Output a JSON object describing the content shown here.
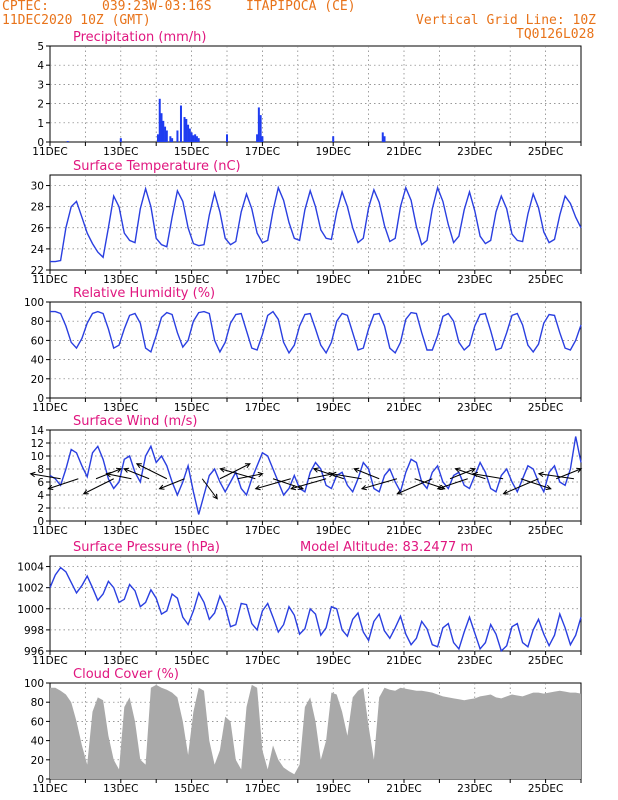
{
  "header": {
    "source": "CPTEC:",
    "coords": "039:23W-03:16S",
    "location": "ITAPIPOCA (CE)",
    "datetime": "11DEC2020 10Z (GMT)",
    "grid_note": "Vertical Grid Line: 10Z",
    "code": "TQ0126L028"
  },
  "x_axis": {
    "start_day": 11,
    "end_day": 26,
    "tick_labels": [
      "11DEC",
      "13DEC",
      "15DEC",
      "17DEC",
      "19DEC",
      "21DEC",
      "23DEC",
      "25DEC"
    ],
    "tick_days": [
      11,
      13,
      15,
      17,
      19,
      21,
      23,
      25
    ]
  },
  "colors": {
    "line": "#2a3fe0",
    "bar": "#1f3cf0",
    "cloud": "#a9a9a9",
    "title": "#e0167f",
    "header": "#e8731a"
  },
  "chart_data": [
    {
      "type": "bar",
      "title": "Precipitation (mm/h)",
      "ylim": [
        0,
        5
      ],
      "yticks": [
        0,
        1,
        2,
        3,
        4,
        5
      ],
      "x": [
        11.5,
        13.0,
        14.05,
        14.1,
        14.15,
        14.2,
        14.25,
        14.3,
        14.4,
        14.45,
        14.6,
        14.7,
        14.8,
        14.85,
        14.9,
        14.95,
        15.0,
        15.05,
        15.1,
        15.15,
        15.2,
        16.0,
        16.85,
        16.9,
        16.95,
        17.0,
        19.0,
        20.4,
        20.45
      ],
      "values": [
        0.05,
        0.2,
        0.4,
        2.25,
        1.5,
        1.1,
        0.8,
        0.6,
        0.3,
        0.2,
        0.6,
        1.9,
        1.3,
        1.2,
        0.9,
        0.7,
        0.5,
        0.35,
        0.4,
        0.3,
        0.2,
        0.4,
        0.4,
        1.8,
        1.4,
        0.3,
        0.3,
        0.5,
        0.3
      ]
    },
    {
      "type": "line",
      "title": "Surface Temperature (nC)",
      "ylim": [
        22,
        31
      ],
      "yticks": [
        22,
        24,
        26,
        28,
        30
      ],
      "x": [
        11.0,
        11.15,
        11.3,
        11.45,
        11.6,
        11.75,
        11.9,
        12.05,
        12.2,
        12.35,
        12.5,
        12.65,
        12.8,
        12.95,
        13.1,
        13.25,
        13.4,
        13.55,
        13.7,
        13.85,
        14.0,
        14.15,
        14.3,
        14.45,
        14.6,
        14.75,
        14.9,
        15.05,
        15.2,
        15.35,
        15.5,
        15.65,
        15.8,
        15.95,
        16.1,
        16.25,
        16.4,
        16.55,
        16.7,
        16.85,
        17.0,
        17.15,
        17.3,
        17.45,
        17.6,
        17.75,
        17.9,
        18.05,
        18.2,
        18.35,
        18.5,
        18.65,
        18.8,
        18.95,
        19.1,
        19.25,
        19.4,
        19.55,
        19.7,
        19.85,
        20.0,
        20.15,
        20.3,
        20.45,
        20.6,
        20.75,
        20.9,
        21.05,
        21.2,
        21.35,
        21.5,
        21.65,
        21.8,
        21.95,
        22.1,
        22.25,
        22.4,
        22.55,
        22.7,
        22.85,
        23.0,
        23.15,
        23.3,
        23.45,
        23.6,
        23.75,
        23.9,
        24.05,
        24.2,
        24.35,
        24.5,
        24.65,
        24.8,
        24.95,
        25.1,
        25.25,
        25.4,
        25.55,
        25.7,
        25.85,
        26.0
      ],
      "values": [
        22.8,
        22.8,
        22.9,
        26.0,
        28.0,
        28.5,
        27.0,
        25.5,
        24.5,
        23.7,
        23.2,
        26.0,
        29.0,
        28.0,
        25.5,
        24.8,
        24.6,
        27.8,
        29.7,
        28.0,
        25.0,
        24.4,
        24.2,
        27.0,
        29.5,
        28.5,
        26.0,
        24.5,
        24.3,
        24.4,
        27.2,
        29.3,
        27.5,
        25.0,
        24.4,
        24.7,
        27.5,
        29.2,
        27.8,
        25.5,
        24.6,
        24.8,
        27.6,
        29.8,
        28.6,
        26.5,
        25.0,
        24.8,
        27.7,
        29.5,
        28.0,
        25.8,
        25.0,
        24.9,
        27.5,
        29.4,
        28.0,
        26.0,
        24.6,
        25.0,
        27.9,
        29.6,
        28.4,
        26.2,
        24.7,
        25.0,
        28.0,
        29.8,
        28.6,
        26.1,
        24.4,
        24.8,
        27.8,
        29.8,
        28.5,
        26.3,
        24.6,
        25.2,
        27.7,
        29.4,
        27.6,
        25.2,
        24.5,
        24.8,
        27.5,
        29.0,
        27.8,
        25.4,
        24.8,
        24.7,
        27.3,
        29.2,
        27.9,
        25.6,
        24.6,
        24.9,
        27.2,
        29.0,
        28.3,
        27.0,
        26.0
      ]
    },
    {
      "type": "line",
      "title": "Relative Humidity (%)",
      "ylim": [
        0,
        100
      ],
      "yticks": [
        0,
        20,
        40,
        60,
        80,
        100
      ],
      "x": [
        11.0,
        11.15,
        11.3,
        11.45,
        11.6,
        11.75,
        11.9,
        12.05,
        12.2,
        12.35,
        12.5,
        12.65,
        12.8,
        12.95,
        13.1,
        13.25,
        13.4,
        13.55,
        13.7,
        13.85,
        14.0,
        14.15,
        14.3,
        14.45,
        14.6,
        14.75,
        14.9,
        15.05,
        15.2,
        15.35,
        15.5,
        15.65,
        15.8,
        15.95,
        16.1,
        16.25,
        16.4,
        16.55,
        16.7,
        16.85,
        17.0,
        17.15,
        17.3,
        17.45,
        17.6,
        17.75,
        17.9,
        18.05,
        18.2,
        18.35,
        18.5,
        18.65,
        18.8,
        18.95,
        19.1,
        19.25,
        19.4,
        19.55,
        19.7,
        19.85,
        20.0,
        20.15,
        20.3,
        20.45,
        20.6,
        20.75,
        20.9,
        21.05,
        21.2,
        21.35,
        21.5,
        21.65,
        21.8,
        21.95,
        22.1,
        22.25,
        22.4,
        22.55,
        22.7,
        22.85,
        23.0,
        23.15,
        23.3,
        23.45,
        23.6,
        23.75,
        23.9,
        24.05,
        24.2,
        24.35,
        24.5,
        24.65,
        24.8,
        24.95,
        25.1,
        25.25,
        25.4,
        25.55,
        25.7,
        25.85,
        26.0
      ],
      "values": [
        90,
        90,
        88,
        75,
        58,
        52,
        62,
        78,
        88,
        90,
        88,
        72,
        52,
        55,
        72,
        86,
        88,
        78,
        52,
        48,
        65,
        84,
        89,
        87,
        68,
        53,
        60,
        80,
        89,
        90,
        88,
        60,
        48,
        58,
        78,
        87,
        88,
        70,
        52,
        50,
        66,
        86,
        90,
        82,
        58,
        47,
        55,
        75,
        87,
        88,
        72,
        55,
        47,
        58,
        80,
        88,
        86,
        68,
        50,
        52,
        72,
        87,
        88,
        75,
        52,
        47,
        58,
        82,
        89,
        88,
        68,
        50,
        50,
        65,
        85,
        88,
        80,
        58,
        50,
        55,
        75,
        87,
        88,
        70,
        50,
        52,
        68,
        86,
        88,
        76,
        55,
        48,
        56,
        78,
        87,
        86,
        68,
        52,
        50,
        60,
        76
      ]
    },
    {
      "type": "line",
      "title": "Surface Wind (m/s)",
      "ylim": [
        0,
        14
      ],
      "yticks": [
        0,
        2,
        4,
        6,
        8,
        10,
        12,
        14
      ],
      "x": [
        11.0,
        11.15,
        11.3,
        11.45,
        11.6,
        11.75,
        11.9,
        12.05,
        12.2,
        12.35,
        12.5,
        12.65,
        12.8,
        12.95,
        13.1,
        13.25,
        13.4,
        13.55,
        13.7,
        13.85,
        14.0,
        14.15,
        14.3,
        14.45,
        14.6,
        14.75,
        14.9,
        15.05,
        15.2,
        15.35,
        15.5,
        15.65,
        15.8,
        15.95,
        16.1,
        16.25,
        16.4,
        16.55,
        16.7,
        16.85,
        17.0,
        17.15,
        17.3,
        17.45,
        17.6,
        17.75,
        17.9,
        18.05,
        18.2,
        18.35,
        18.5,
        18.65,
        18.8,
        18.95,
        19.1,
        19.25,
        19.4,
        19.55,
        19.7,
        19.85,
        20.0,
        20.15,
        20.3,
        20.45,
        20.6,
        20.75,
        20.9,
        21.05,
        21.2,
        21.35,
        21.5,
        21.65,
        21.8,
        21.95,
        22.1,
        22.25,
        22.4,
        22.55,
        22.7,
        22.85,
        23.0,
        23.15,
        23.3,
        23.45,
        23.6,
        23.75,
        23.9,
        24.05,
        24.2,
        24.35,
        24.5,
        24.65,
        24.8,
        24.95,
        25.1,
        25.25,
        25.4,
        25.55,
        25.7,
        25.85,
        26.0
      ],
      "values": [
        7.0,
        6.5,
        5.5,
        8.0,
        11.0,
        10.5,
        8.5,
        6.8,
        10.5,
        11.5,
        9.5,
        6.5,
        5.0,
        6.0,
        9.5,
        10.0,
        7.5,
        6.0,
        10.0,
        11.5,
        9.0,
        10.0,
        8.5,
        6.0,
        4.0,
        6.0,
        8.5,
        4.5,
        1.0,
        4.0,
        7.0,
        8.0,
        6.0,
        4.5,
        6.0,
        7.5,
        5.0,
        4.0,
        6.5,
        8.5,
        10.5,
        10.0,
        8.0,
        6.0,
        4.0,
        5.0,
        7.0,
        5.0,
        4.5,
        7.5,
        9.0,
        8.0,
        5.5,
        5.0,
        7.0,
        7.5,
        5.5,
        4.5,
        6.5,
        9.0,
        8.0,
        5.0,
        4.5,
        7.0,
        8.0,
        6.0,
        4.5,
        7.5,
        9.5,
        9.0,
        6.0,
        5.0,
        7.5,
        8.5,
        6.0,
        5.0,
        7.0,
        7.5,
        5.5,
        5.0,
        7.0,
        9.0,
        7.5,
        5.0,
        4.5,
        7.0,
        8.0,
        6.0,
        4.5,
        6.5,
        8.5,
        8.0,
        6.0,
        4.5,
        7.5,
        8.5,
        6.0,
        5.5,
        8.0,
        13.0,
        9.0
      ],
      "vector_days": [
        11.3,
        11.8,
        12.3,
        12.8,
        13.3,
        13.8,
        14.3,
        14.8,
        15.3,
        15.8,
        16.3,
        16.8,
        17.3,
        17.8,
        18.3,
        18.8,
        19.3,
        19.8,
        20.3,
        20.8,
        21.3,
        21.8,
        22.3,
        22.8,
        23.3,
        23.8,
        24.3,
        24.8,
        25.3,
        25.8
      ],
      "vector_u": [
        -6,
        -6,
        5,
        -6,
        -5,
        -5,
        -6,
        -5,
        3,
        6,
        5,
        -7,
        6,
        -7,
        5,
        -7,
        -6,
        -6,
        -5,
        -7,
        6,
        -7,
        5,
        -6,
        -6,
        -6,
        6,
        -7,
        5,
        -7
      ],
      "vector_v": [
        1,
        -2,
        2,
        -3,
        1,
        2,
        3,
        -2,
        -4,
        3,
        1,
        2,
        -2,
        -2,
        1,
        -2,
        2,
        1,
        2,
        -2,
        -2,
        -3,
        2,
        -2,
        2,
        1,
        -2,
        -3,
        2,
        1
      ]
    },
    {
      "type": "line",
      "title": "Surface Pressure (hPa)",
      "annotation": "Model Altitude: 83.2477 m",
      "ylim": [
        996,
        1005
      ],
      "yticks": [
        996,
        998,
        1000,
        1002,
        1004
      ],
      "x": [
        11.0,
        11.15,
        11.3,
        11.45,
        11.6,
        11.75,
        11.9,
        12.05,
        12.2,
        12.35,
        12.5,
        12.65,
        12.8,
        12.95,
        13.1,
        13.25,
        13.4,
        13.55,
        13.7,
        13.85,
        14.0,
        14.15,
        14.3,
        14.45,
        14.6,
        14.75,
        14.9,
        15.05,
        15.2,
        15.35,
        15.5,
        15.65,
        15.8,
        15.95,
        16.1,
        16.25,
        16.4,
        16.55,
        16.7,
        16.85,
        17.0,
        17.15,
        17.3,
        17.45,
        17.6,
        17.75,
        17.9,
        18.05,
        18.2,
        18.35,
        18.5,
        18.65,
        18.8,
        18.95,
        19.1,
        19.25,
        19.4,
        19.55,
        19.7,
        19.85,
        20.0,
        20.15,
        20.3,
        20.45,
        20.6,
        20.75,
        20.9,
        21.05,
        21.2,
        21.35,
        21.5,
        21.65,
        21.8,
        21.95,
        22.1,
        22.25,
        22.4,
        22.55,
        22.7,
        22.85,
        23.0,
        23.15,
        23.3,
        23.45,
        23.6,
        23.75,
        23.9,
        24.05,
        24.2,
        24.35,
        24.5,
        24.65,
        24.8,
        24.95,
        25.1,
        25.25,
        25.4,
        25.55,
        25.7,
        25.85,
        26.0
      ],
      "values": [
        1002.0,
        1003.2,
        1003.9,
        1003.5,
        1002.5,
        1001.5,
        1002.2,
        1003.1,
        1002.0,
        1000.8,
        1001.4,
        1002.6,
        1002.0,
        1000.6,
        1000.9,
        1002.3,
        1001.7,
        1000.2,
        1000.6,
        1001.8,
        1001.0,
        999.5,
        999.8,
        1001.4,
        1001.0,
        999.2,
        998.5,
        999.8,
        1001.5,
        1000.6,
        999.0,
        999.6,
        1001.2,
        1000.2,
        998.3,
        998.5,
        1000.5,
        1000.4,
        998.6,
        998.0,
        999.8,
        1000.5,
        999.2,
        997.8,
        998.5,
        1000.2,
        999.4,
        997.6,
        998.1,
        1000.0,
        999.5,
        997.5,
        998.2,
        1000.2,
        1000.0,
        998.0,
        997.4,
        999.0,
        999.6,
        997.8,
        997.0,
        998.8,
        999.5,
        997.9,
        997.2,
        998.2,
        999.3,
        997.6,
        996.6,
        997.2,
        998.8,
        998.1,
        996.6,
        996.4,
        998.2,
        998.6,
        996.8,
        996.2,
        997.8,
        999.2,
        997.7,
        996.2,
        996.8,
        998.5,
        997.6,
        996.0,
        996.5,
        998.3,
        998.6,
        996.8,
        996.4,
        998.0,
        999.0,
        997.6,
        996.5,
        997.5,
        999.5,
        998.2,
        996.6,
        997.5,
        999.2
      ]
    },
    {
      "type": "area",
      "title": "Cloud Cover (%)",
      "ylim": [
        0,
        100
      ],
      "yticks": [
        0,
        20,
        40,
        60,
        80,
        100
      ],
      "x": [
        11.0,
        11.15,
        11.3,
        11.45,
        11.6,
        11.75,
        11.9,
        12.05,
        12.2,
        12.35,
        12.5,
        12.65,
        12.8,
        12.95,
        13.1,
        13.25,
        13.4,
        13.55,
        13.7,
        13.85,
        14.0,
        14.15,
        14.3,
        14.45,
        14.6,
        14.75,
        14.9,
        15.05,
        15.2,
        15.35,
        15.5,
        15.65,
        15.8,
        15.95,
        16.1,
        16.25,
        16.4,
        16.55,
        16.7,
        16.85,
        17.0,
        17.15,
        17.3,
        17.45,
        17.6,
        17.75,
        17.9,
        18.05,
        18.2,
        18.35,
        18.5,
        18.65,
        18.8,
        18.95,
        19.1,
        19.25,
        19.4,
        19.55,
        19.7,
        19.85,
        20.0,
        20.15,
        20.3,
        20.45,
        20.6,
        20.75,
        20.9,
        21.05,
        21.2,
        21.35,
        21.5,
        21.65,
        21.8,
        21.95,
        22.1,
        22.25,
        22.4,
        22.55,
        22.7,
        22.85,
        23.0,
        23.15,
        23.3,
        23.45,
        23.6,
        23.75,
        23.9,
        24.05,
        24.2,
        24.35,
        24.5,
        24.65,
        24.8,
        24.95,
        25.1,
        25.25,
        25.4,
        25.55,
        25.7,
        25.85,
        26.0
      ],
      "values": [
        95,
        95,
        92,
        88,
        80,
        60,
        35,
        15,
        70,
        85,
        82,
        45,
        20,
        10,
        75,
        85,
        60,
        20,
        15,
        95,
        98,
        95,
        93,
        90,
        85,
        60,
        25,
        70,
        95,
        92,
        40,
        15,
        30,
        65,
        60,
        20,
        10,
        75,
        98,
        95,
        30,
        10,
        35,
        20,
        12,
        8,
        5,
        15,
        75,
        85,
        60,
        20,
        40,
        90,
        88,
        70,
        45,
        85,
        92,
        95,
        55,
        20,
        85,
        95,
        93,
        92,
        95,
        94,
        93,
        92,
        92,
        91,
        90,
        88,
        86,
        85,
        84,
        83,
        82,
        83,
        84,
        86,
        87,
        88,
        85,
        84,
        86,
        88,
        87,
        86,
        88,
        90,
        90,
        89,
        90,
        91,
        92,
        91,
        90,
        90,
        89
      ]
    }
  ]
}
